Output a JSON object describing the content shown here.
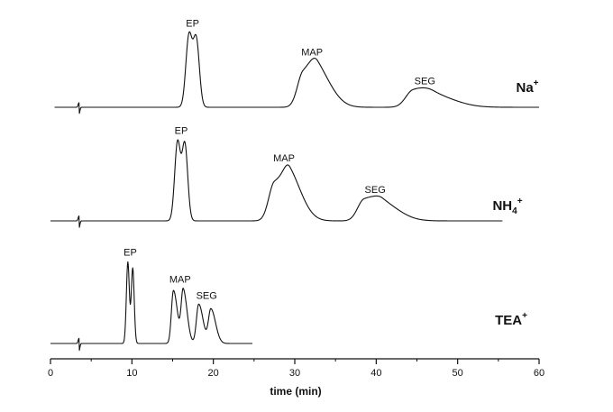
{
  "chart_data": {
    "type": "line",
    "title": "",
    "xlabel": "time (min)",
    "ylabel": "",
    "xlim": [
      0,
      60
    ],
    "xticks": [
      0,
      10,
      20,
      30,
      40,
      50,
      60
    ],
    "grid": false,
    "traces": [
      {
        "name": "Na",
        "superscript": "+",
        "subscript": "",
        "x_start": 0.5,
        "x_end": 60,
        "peaks": [
          {
            "label": "EP",
            "times": [
              17.0,
              17.9
            ],
            "heights": [
              0.92,
              0.88
            ],
            "widths": [
              0.38,
              0.38
            ]
          },
          {
            "label": "MAP",
            "times": [
              31.0,
              32.8
            ],
            "heights": [
              0.42,
              0.44
            ],
            "widths": [
              0.7,
              0.9
            ]
          },
          {
            "label": "SEG",
            "times": [
              44.5,
              47.0
            ],
            "heights": [
              0.2,
              0.15
            ],
            "widths": [
              0.9,
              1.4
            ]
          }
        ]
      },
      {
        "name": "NH",
        "superscript": "+",
        "subscript": "4",
        "x_start": 0,
        "x_end": 55.5,
        "peaks": [
          {
            "label": "EP",
            "times": [
              15.6,
              16.5
            ],
            "heights": [
              0.96,
              0.94
            ],
            "widths": [
              0.35,
              0.35
            ]
          },
          {
            "label": "MAP",
            "times": [
              27.5,
              29.4
            ],
            "heights": [
              0.46,
              0.5
            ],
            "widths": [
              0.7,
              0.8
            ]
          },
          {
            "label": "SEG",
            "times": [
              38.5,
              40.8
            ],
            "heights": [
              0.25,
              0.2
            ],
            "widths": [
              0.8,
              1.1
            ]
          }
        ]
      },
      {
        "name": "TEA",
        "superscript": "+",
        "subscript": "",
        "x_start": 0,
        "x_end": 24.8,
        "peaks": [
          {
            "label": "EP",
            "times": [
              9.5,
              10.1
            ],
            "heights": [
              0.95,
              0.88
            ],
            "widths": [
              0.18,
              0.18
            ]
          },
          {
            "label": "MAP",
            "times": [
              15.1,
              16.3
            ],
            "heights": [
              0.62,
              0.62
            ],
            "widths": [
              0.25,
              0.25
            ]
          },
          {
            "label": "SEG",
            "times": [
              18.2,
              19.7
            ],
            "heights": [
              0.46,
              0.4
            ],
            "widths": [
              0.28,
              0.3
            ]
          }
        ]
      }
    ]
  }
}
